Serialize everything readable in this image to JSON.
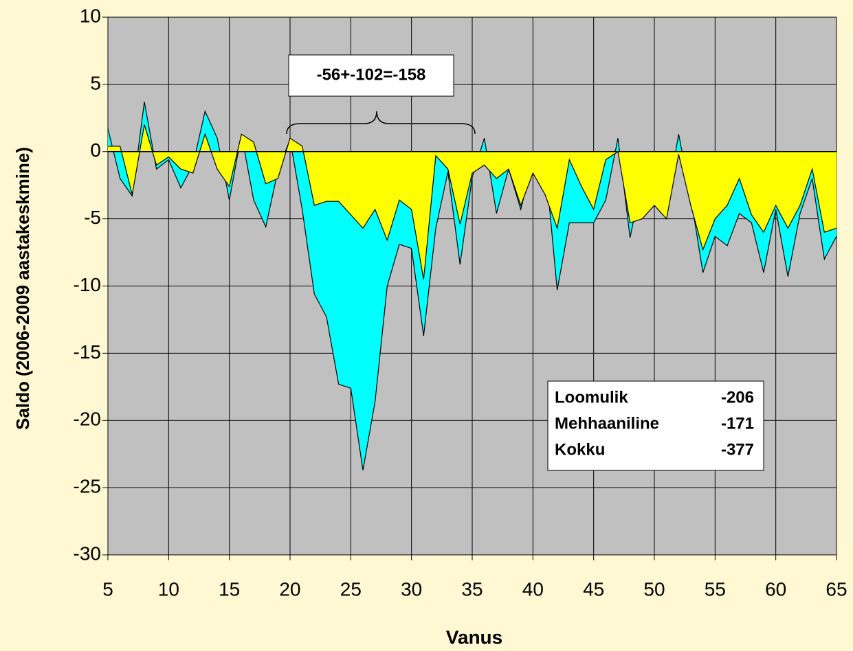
{
  "chart_data": {
    "type": "area",
    "x_label": "Vanus",
    "y_label": "Saldo (2006-2009 aastakeskmine)",
    "annotation": "-56+-102=-158",
    "summary": [
      [
        "Loomulik",
        "-206"
      ],
      [
        "Mehhaaniline",
        "-171"
      ],
      [
        "Kokku",
        "-377"
      ]
    ],
    "x": [
      5,
      6,
      7,
      8,
      9,
      10,
      11,
      12,
      13,
      14,
      15,
      16,
      17,
      18,
      19,
      20,
      21,
      22,
      23,
      24,
      25,
      26,
      27,
      28,
      29,
      30,
      31,
      32,
      33,
      34,
      35,
      36,
      37,
      38,
      39,
      40,
      41,
      42,
      43,
      44,
      45,
      46,
      47,
      48,
      49,
      50,
      51,
      52,
      53,
      54,
      55,
      56,
      57,
      58,
      59,
      60,
      61,
      62,
      63,
      64,
      65
    ],
    "series": [
      {
        "color": "#00ffff",
        "values": [
          1.7,
          -2,
          -3.3,
          3.7,
          -1.3,
          -0.6,
          -2.7,
          -1,
          3,
          1,
          -3.6,
          1.3,
          -3.6,
          -5.6,
          -1.4,
          0.9,
          -4.3,
          -10.6,
          -12.3,
          -17.3,
          -17.6,
          -23.7,
          -18.6,
          -10,
          -6.9,
          -7.2,
          -13.7,
          -5.7,
          -1.5,
          -8.4,
          -1.9,
          1,
          -4.6,
          -1.3,
          -4.3,
          -0.6,
          -0.6,
          -10.3,
          -5.3,
          -5.3,
          -5.3,
          -3.6,
          1,
          -6.4,
          -2,
          -2.3,
          -4,
          1.3,
          -3.4,
          -9,
          -6.3,
          -7,
          -4.6,
          -5.3,
          -9,
          -4.3,
          -9.3,
          -4.6,
          -2,
          -8,
          -6.3
        ]
      },
      {
        "color": "#ffff00",
        "values": [
          0.4,
          0.4,
          -3.2,
          2,
          -1,
          -0.4,
          -1.3,
          -1.6,
          1.3,
          -1.3,
          -2.6,
          1.3,
          0.7,
          -2.4,
          -2,
          1,
          0.4,
          -4,
          -3.7,
          -3.7,
          -4.7,
          -5.7,
          -4.3,
          -6.6,
          -3.6,
          -4.3,
          -9.5,
          -0.3,
          -1.3,
          -5.4,
          -1.6,
          -1,
          -2,
          -1.3,
          -4,
          -1.6,
          -3.2,
          -5.7,
          -0.6,
          -2.6,
          -4.3,
          -0.6,
          0,
          -5.3,
          -5,
          -4,
          -5,
          -0.2,
          -4,
          -7.3,
          -5,
          -4,
          -2,
          -4.7,
          -6,
          -4,
          -5.7,
          -4,
          -1.3,
          -6,
          -5.7
        ]
      }
    ],
    "xlim": [
      5,
      65
    ],
    "xticks": [
      5,
      10,
      15,
      20,
      25,
      30,
      35,
      40,
      45,
      50,
      55,
      60,
      65
    ],
    "ylim": [
      -30,
      10
    ],
    "yticks": [
      -30,
      -25,
      -20,
      -15,
      -10,
      -5,
      0,
      5,
      10
    ],
    "grid": true,
    "plot_background": "#c0c0c0"
  }
}
